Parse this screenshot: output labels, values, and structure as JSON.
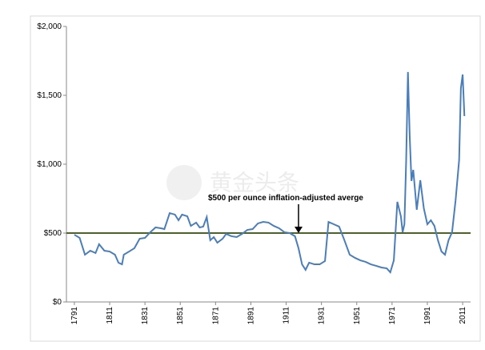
{
  "chart_data": {
    "type": "line",
    "annotation": "$500 per ounce inflation-adjusted averge",
    "watermark": "黄金头条",
    "reference_line": {
      "value": 500,
      "color": "#4f6228"
    },
    "xlim": [
      1786.5,
      2015.5
    ],
    "xticks": [
      1791,
      1811,
      1831,
      1851,
      1871,
      1891,
      1911,
      1931,
      1951,
      1971,
      1991,
      2011
    ],
    "ylim": [
      0,
      2000
    ],
    "yticks": [
      {
        "value": 0,
        "label": "$0"
      },
      {
        "value": 500,
        "label": "$500"
      },
      {
        "value": 1000,
        "label": "$1,000"
      },
      {
        "value": 1500,
        "label": "$1,500"
      },
      {
        "value": 2000,
        "label": "$2,000"
      }
    ],
    "x": [
      1791,
      1794,
      1797,
      1800,
      1803,
      1805,
      1808,
      1811,
      1814,
      1816,
      1818,
      1819,
      1822,
      1825,
      1828,
      1831,
      1834,
      1837,
      1840,
      1842,
      1845,
      1848,
      1850,
      1852,
      1855,
      1857,
      1860,
      1862,
      1864,
      1866,
      1868,
      1870,
      1872,
      1875,
      1877,
      1880,
      1883,
      1886,
      1889,
      1892,
      1895,
      1898,
      1901,
      1904,
      1907,
      1910,
      1913,
      1916,
      1918,
      1920,
      1922,
      1924,
      1927,
      1930,
      1933,
      1935,
      1938,
      1941,
      1944,
      1947,
      1950,
      1953,
      1956,
      1959,
      1962,
      1965,
      1968,
      1970,
      1972,
      1974,
      1976,
      1977,
      1978,
      1979,
      1980,
      1981,
      1982,
      1983,
      1985,
      1987,
      1989,
      1991,
      1993,
      1995,
      1997,
      1999,
      2001,
      2003,
      2005,
      2007,
      2009,
      2010,
      2011,
      2012
    ],
    "series": [
      {
        "color": "#4a7ebb",
        "values": [
          488,
          465,
          343,
          372,
          355,
          419,
          372,
          366,
          343,
          285,
          273,
          343,
          366,
          390,
          459,
          465,
          506,
          541,
          535,
          529,
          645,
          634,
          593,
          634,
          622,
          552,
          576,
          541,
          547,
          616,
          448,
          471,
          430,
          459,
          494,
          477,
          471,
          494,
          523,
          529,
          570,
          581,
          576,
          552,
          535,
          506,
          500,
          477,
          390,
          273,
          233,
          285,
          273,
          273,
          297,
          581,
          564,
          547,
          448,
          343,
          320,
          302,
          291,
          273,
          262,
          250,
          244,
          215,
          302,
          727,
          622,
          506,
          564,
          1029,
          1669,
          1203,
          878,
          959,
          669,
          884,
          680,
          564,
          593,
          552,
          448,
          366,
          343,
          448,
          506,
          738,
          1029,
          1552,
          1651,
          1349
        ]
      }
    ]
  }
}
